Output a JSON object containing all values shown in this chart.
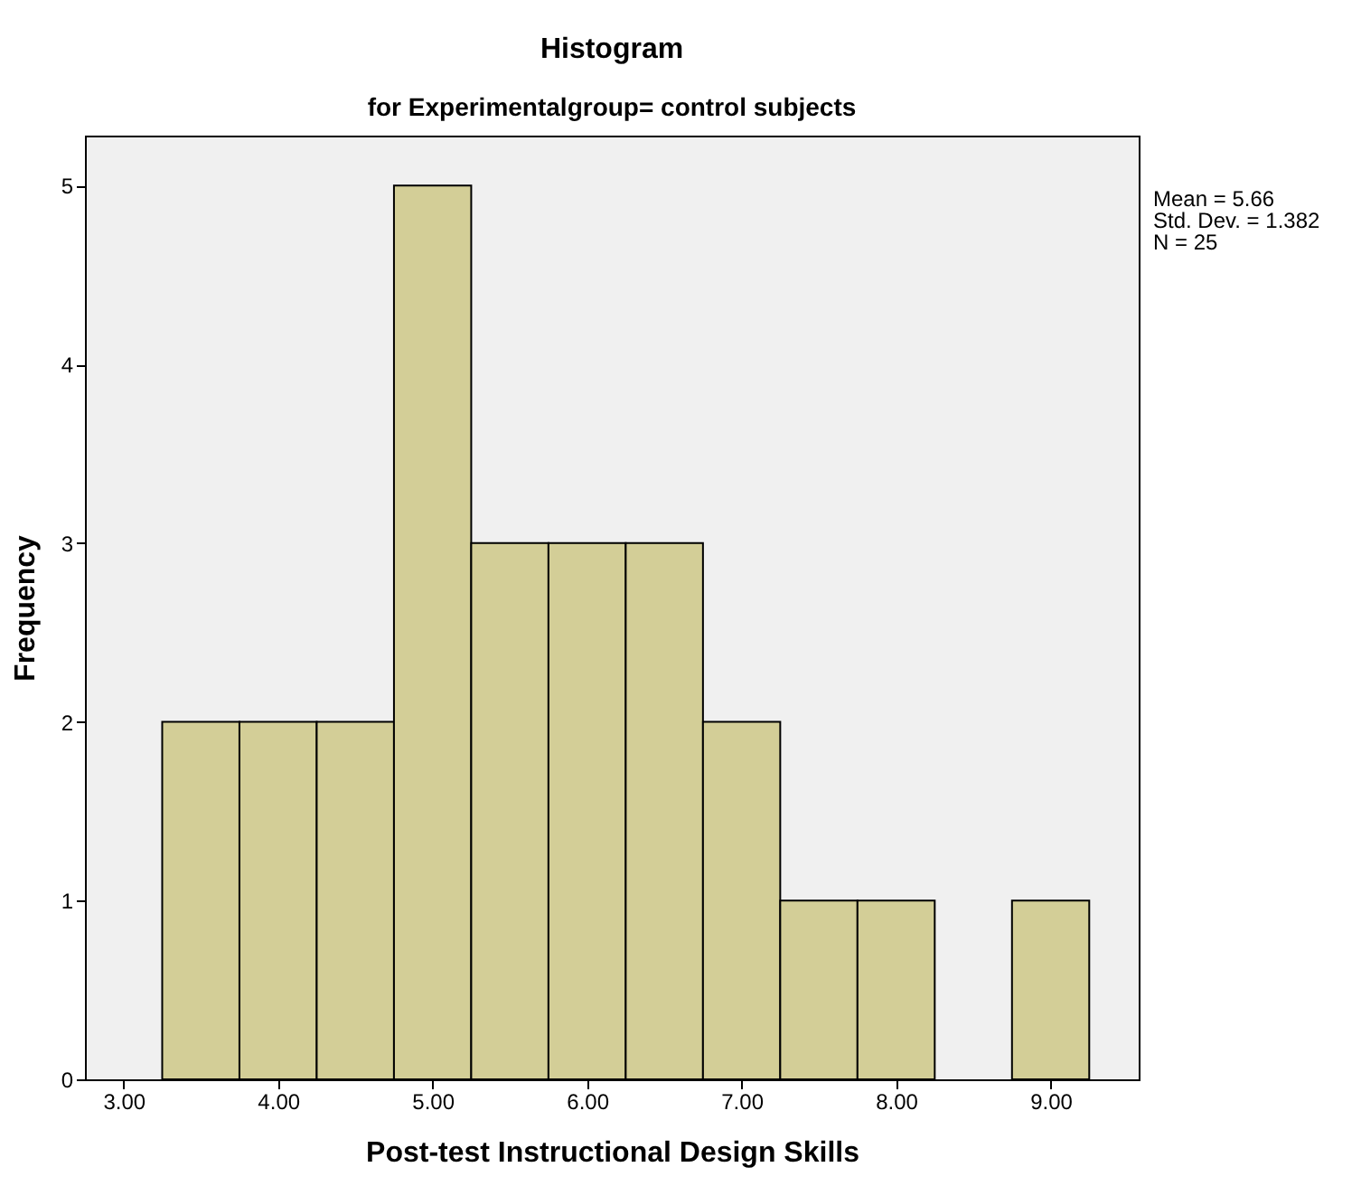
{
  "chart_data": {
    "type": "histogram",
    "title": "Histogram",
    "subtitle": "for Experimentalgroup= control subjects",
    "xlabel": "Post-test Instructional Design Skills",
    "ylabel": "Frequency",
    "bins": [
      3.25,
      3.75,
      4.25,
      4.75,
      5.25,
      5.75,
      6.25,
      6.75,
      7.25,
      7.75,
      8.25,
      8.75,
      9.25
    ],
    "values": [
      2,
      2,
      2,
      5,
      3,
      3,
      3,
      2,
      1,
      1,
      0,
      1
    ],
    "color": "#d3ce97",
    "xlim": [
      2.75,
      9.57
    ],
    "ylim": [
      0,
      5.28
    ],
    "xticks": [
      {
        "value": 3,
        "label": "3.00"
      },
      {
        "value": 4,
        "label": "4.00"
      },
      {
        "value": 5,
        "label": "5.00"
      },
      {
        "value": 6,
        "label": "6.00"
      },
      {
        "value": 7,
        "label": "7.00"
      },
      {
        "value": 8,
        "label": "8.00"
      },
      {
        "value": 9,
        "label": "9.00"
      }
    ],
    "yticks": [
      0,
      1,
      2,
      3,
      4,
      5
    ],
    "grid": false,
    "annotations": [
      "Mean = 5.66",
      "Std. Dev. = 1.382",
      "N = 25"
    ]
  }
}
